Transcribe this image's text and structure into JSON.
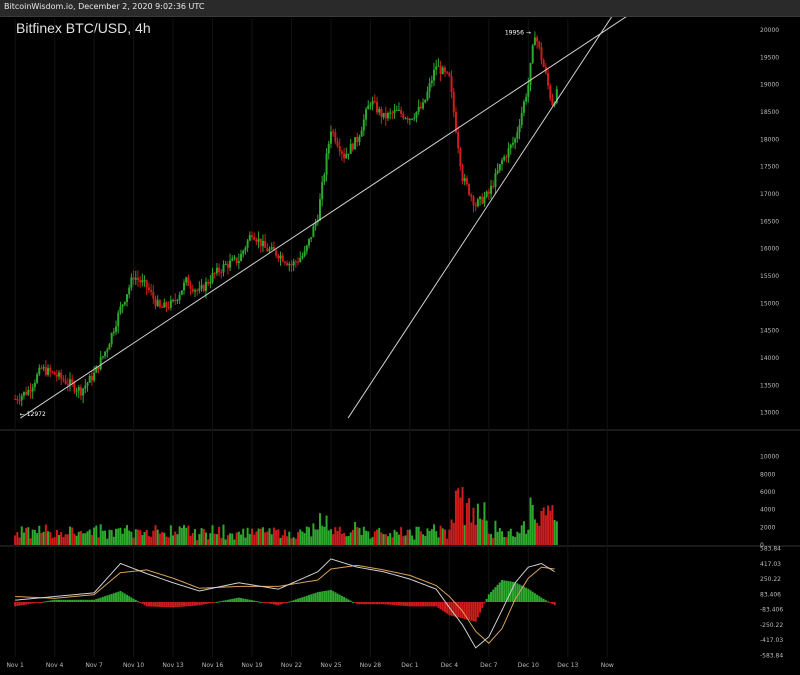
{
  "header": {
    "text": "BitcoinWisdom.io, December 2, 2020 9:02:36 UTC"
  },
  "colors": {
    "up": "#2ea82e",
    "down": "#d11c1c",
    "trend": "#d0d0d0",
    "divider": "#333333",
    "macd": "#cfcfcf",
    "signal": "#d8a25a"
  },
  "chart_data": [
    {
      "type": "candlestick",
      "title": "Bitfinex BTC/USD, 4h",
      "interval": "4h",
      "ylim": [
        12700,
        20200
      ],
      "yticks": [
        "20000",
        "19500",
        "19000",
        "18500",
        "18000",
        "17500",
        "17000",
        "16500",
        "16000",
        "15500",
        "15000",
        "14500",
        "14000",
        "13500",
        "13000"
      ],
      "xticks": [
        "Nov 1",
        "Nov 4",
        "Nov 7",
        "Nov 10",
        "Nov 13",
        "Nov 16",
        "Nov 19",
        "Nov 22",
        "Nov 25",
        "Nov 28",
        "Dec 1",
        "Dec 4",
        "Dec 7",
        "Dec 10",
        "Dec 13",
        "Now"
      ],
      "xlim": [
        -1,
        56
      ],
      "annotations": [
        {
          "text": "19956",
          "x": 39.5,
          "y": 19956
        },
        {
          "text": "12972",
          "x": 0.2,
          "y": 12972
        }
      ],
      "trendlines": [
        {
          "x1": 0.4,
          "y1": 12900,
          "x2": 46.8,
          "y2": 20300
        },
        {
          "x1": 25.3,
          "y1": 12900,
          "x2": 45.5,
          "y2": 20300
        }
      ],
      "close_keypoints": [
        [
          0,
          13250
        ],
        [
          1,
          13400
        ],
        [
          2,
          13800
        ],
        [
          3,
          13700
        ],
        [
          4,
          13550
        ],
        [
          5,
          13400
        ],
        [
          6,
          13700
        ],
        [
          7,
          14200
        ],
        [
          8,
          14900
        ],
        [
          9,
          15500
        ],
        [
          10,
          15300
        ],
        [
          11,
          14900
        ],
        [
          12,
          15000
        ],
        [
          13,
          15400
        ],
        [
          14,
          15200
        ],
        [
          15,
          15500
        ],
        [
          16,
          15700
        ],
        [
          17,
          15800
        ],
        [
          18,
          16300
        ],
        [
          19,
          16000
        ],
        [
          20,
          15900
        ],
        [
          21,
          15700
        ],
        [
          22,
          15900
        ],
        [
          23,
          16600
        ],
        [
          24,
          18200
        ],
        [
          25,
          17700
        ],
        [
          26,
          18000
        ],
        [
          27,
          18700
        ],
        [
          28,
          18400
        ],
        [
          29,
          18500
        ],
        [
          30,
          18400
        ],
        [
          31,
          18600
        ],
        [
          32,
          19350
        ],
        [
          33,
          19100
        ],
        [
          34,
          17300
        ],
        [
          35,
          16800
        ],
        [
          36,
          17000
        ],
        [
          37,
          17600
        ],
        [
          38,
          18000
        ],
        [
          39,
          19000
        ],
        [
          39.5,
          19950
        ],
        [
          40.3,
          19200
        ],
        [
          40.8,
          18650
        ],
        [
          41.3,
          18900
        ]
      ]
    },
    {
      "type": "bar",
      "title": "",
      "ylim": [
        0,
        12000
      ],
      "yticks": [
        "10000",
        "8000",
        "6000",
        "4000",
        "2000",
        "0"
      ]
    },
    {
      "type": "line",
      "title": "",
      "ylim": [
        -600,
        600
      ],
      "yticks": [
        "583.84",
        "417.03",
        "250.22",
        "83.406",
        "-83.406",
        "-250.22",
        "-417.03",
        "-583.84"
      ],
      "series": [
        {
          "values": [
            [
              0,
              20
            ],
            [
              3,
              60
            ],
            [
              6,
              100
            ],
            [
              8,
              420
            ],
            [
              10,
              310
            ],
            [
              12,
              210
            ],
            [
              14,
              120
            ],
            [
              17,
              210
            ],
            [
              20,
              140
            ],
            [
              23,
              330
            ],
            [
              24,
              470
            ],
            [
              26,
              380
            ],
            [
              28,
              330
            ],
            [
              30,
              250
            ],
            [
              32,
              140
            ],
            [
              33,
              -60
            ],
            [
              34,
              -250
            ],
            [
              35,
              -500
            ],
            [
              36,
              -380
            ],
            [
              37,
              -90
            ],
            [
              38,
              210
            ],
            [
              39,
              380
            ],
            [
              40,
              420
            ],
            [
              41,
              330
            ]
          ]
        },
        {
          "values": [
            [
              0,
              60
            ],
            [
              3,
              40
            ],
            [
              6,
              80
            ],
            [
              8,
              320
            ],
            [
              10,
              350
            ],
            [
              12,
              260
            ],
            [
              14,
              150
            ],
            [
              17,
              170
            ],
            [
              20,
              170
            ],
            [
              23,
              240
            ],
            [
              24,
              360
            ],
            [
              26,
              400
            ],
            [
              28,
              350
            ],
            [
              30,
              290
            ],
            [
              32,
              180
            ],
            [
              33,
              60
            ],
            [
              34,
              -100
            ],
            [
              35,
              -320
            ],
            [
              36,
              -450
            ],
            [
              37,
              -290
            ],
            [
              38,
              30
            ],
            [
              39,
              260
            ],
            [
              40,
              380
            ],
            [
              41,
              360
            ]
          ]
        }
      ]
    }
  ]
}
